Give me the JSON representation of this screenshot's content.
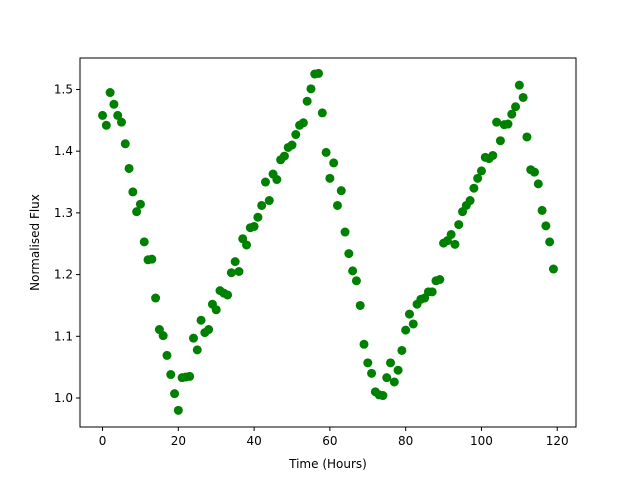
{
  "chart_data": {
    "type": "scatter",
    "title": "",
    "xlabel": "Time (Hours)",
    "ylabel": "Normalised Flux",
    "xlim": [
      -5.95,
      124.95
    ],
    "ylim": [
      0.953,
      1.551
    ],
    "xticks": [
      0,
      20,
      40,
      60,
      80,
      100,
      120
    ],
    "yticks": [
      1.0,
      1.1,
      1.2,
      1.3,
      1.4,
      1.5
    ],
    "xtick_labels": [
      "0",
      "20",
      "40",
      "60",
      "80",
      "100",
      "120"
    ],
    "ytick_labels": [
      "1.0",
      "1.1",
      "1.2",
      "1.3",
      "1.4",
      "1.5"
    ],
    "grid": false,
    "legend": "none",
    "marker_color": "#008000",
    "series": [
      {
        "x": [
          0,
          1,
          2,
          3,
          4,
          5,
          6,
          7,
          8,
          9,
          10,
          11,
          12,
          13,
          14,
          15,
          16,
          17,
          18,
          19,
          20,
          21,
          22,
          23,
          24,
          25,
          26,
          27,
          28,
          29,
          30,
          31,
          32,
          33,
          34,
          35,
          36,
          37,
          38,
          39,
          40,
          41,
          42,
          43,
          44,
          45,
          46,
          47,
          48,
          49,
          50,
          51,
          52,
          53,
          54,
          55,
          56,
          57,
          58,
          59,
          60,
          61,
          62,
          63,
          64,
          65,
          66,
          67,
          68,
          69,
          70,
          71,
          72,
          73,
          74,
          75,
          76,
          77,
          78,
          79,
          80,
          81,
          82,
          83,
          84,
          85,
          86,
          87,
          88,
          89,
          90,
          91,
          92,
          93,
          94,
          95,
          96,
          97,
          98,
          99,
          100,
          101,
          102,
          103,
          104,
          105,
          106,
          107,
          108,
          109,
          110,
          111,
          112,
          113,
          114,
          115,
          116,
          117,
          118,
          119
        ],
        "y": [
          1.458,
          1.442,
          1.495,
          1.476,
          1.458,
          1.447,
          1.412,
          1.372,
          1.334,
          1.302,
          1.314,
          1.253,
          1.224,
          1.225,
          1.162,
          1.111,
          1.101,
          1.069,
          1.038,
          1.007,
          0.98,
          1.033,
          1.034,
          1.035,
          1.097,
          1.078,
          1.126,
          1.106,
          1.111,
          1.152,
          1.143,
          1.174,
          1.17,
          1.167,
          1.203,
          1.221,
          1.205,
          1.258,
          1.248,
          1.276,
          1.278,
          1.293,
          1.312,
          1.35,
          1.32,
          1.363,
          1.354,
          1.386,
          1.392,
          1.406,
          1.41,
          1.427,
          1.442,
          1.446,
          1.481,
          1.501,
          1.525,
          1.526,
          1.462,
          1.398,
          1.356,
          1.381,
          1.312,
          1.336,
          1.269,
          1.234,
          1.206,
          1.19,
          1.15,
          1.087,
          1.057,
          1.04,
          1.01,
          1.005,
          1.004,
          1.033,
          1.057,
          1.026,
          1.045,
          1.077,
          1.11,
          1.136,
          1.12,
          1.152,
          1.16,
          1.162,
          1.172,
          1.172,
          1.19,
          1.192,
          1.251,
          1.255,
          1.265,
          1.249,
          1.281,
          1.302,
          1.312,
          1.32,
          1.34,
          1.356,
          1.368,
          1.39,
          1.388,
          1.393,
          1.447,
          1.417,
          1.443,
          1.444,
          1.46,
          1.472,
          1.507,
          1.487,
          1.423,
          1.37,
          1.366,
          1.347,
          1.304,
          1.279,
          1.253,
          1.209
        ]
      }
    ]
  }
}
